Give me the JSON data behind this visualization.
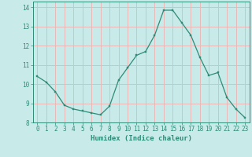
{
  "x": [
    0,
    1,
    2,
    3,
    4,
    5,
    6,
    7,
    8,
    9,
    10,
    11,
    12,
    13,
    14,
    15,
    16,
    17,
    18,
    19,
    20,
    21,
    22,
    23
  ],
  "y": [
    10.4,
    10.1,
    9.6,
    8.9,
    8.7,
    8.6,
    8.5,
    8.4,
    8.85,
    10.2,
    10.85,
    11.5,
    11.7,
    12.55,
    13.85,
    13.85,
    13.2,
    12.55,
    11.4,
    10.45,
    10.6,
    9.3,
    8.7,
    8.25
  ],
  "xlabel": "Humidex (Indice chaleur)",
  "xlim": [
    -0.5,
    23.5
  ],
  "ylim": [
    8.0,
    14.3
  ],
  "yticks": [
    8,
    9,
    10,
    11,
    12,
    13,
    14
  ],
  "xticks": [
    0,
    1,
    2,
    3,
    4,
    5,
    6,
    7,
    8,
    9,
    10,
    11,
    12,
    13,
    14,
    15,
    16,
    17,
    18,
    19,
    20,
    21,
    22,
    23
  ],
  "line_color": "#2e8b78",
  "bg_color": "#c8eae8",
  "grid_color": "#e8b8b8",
  "xlabel_fontsize": 6.5,
  "tick_fontsize": 5.5
}
